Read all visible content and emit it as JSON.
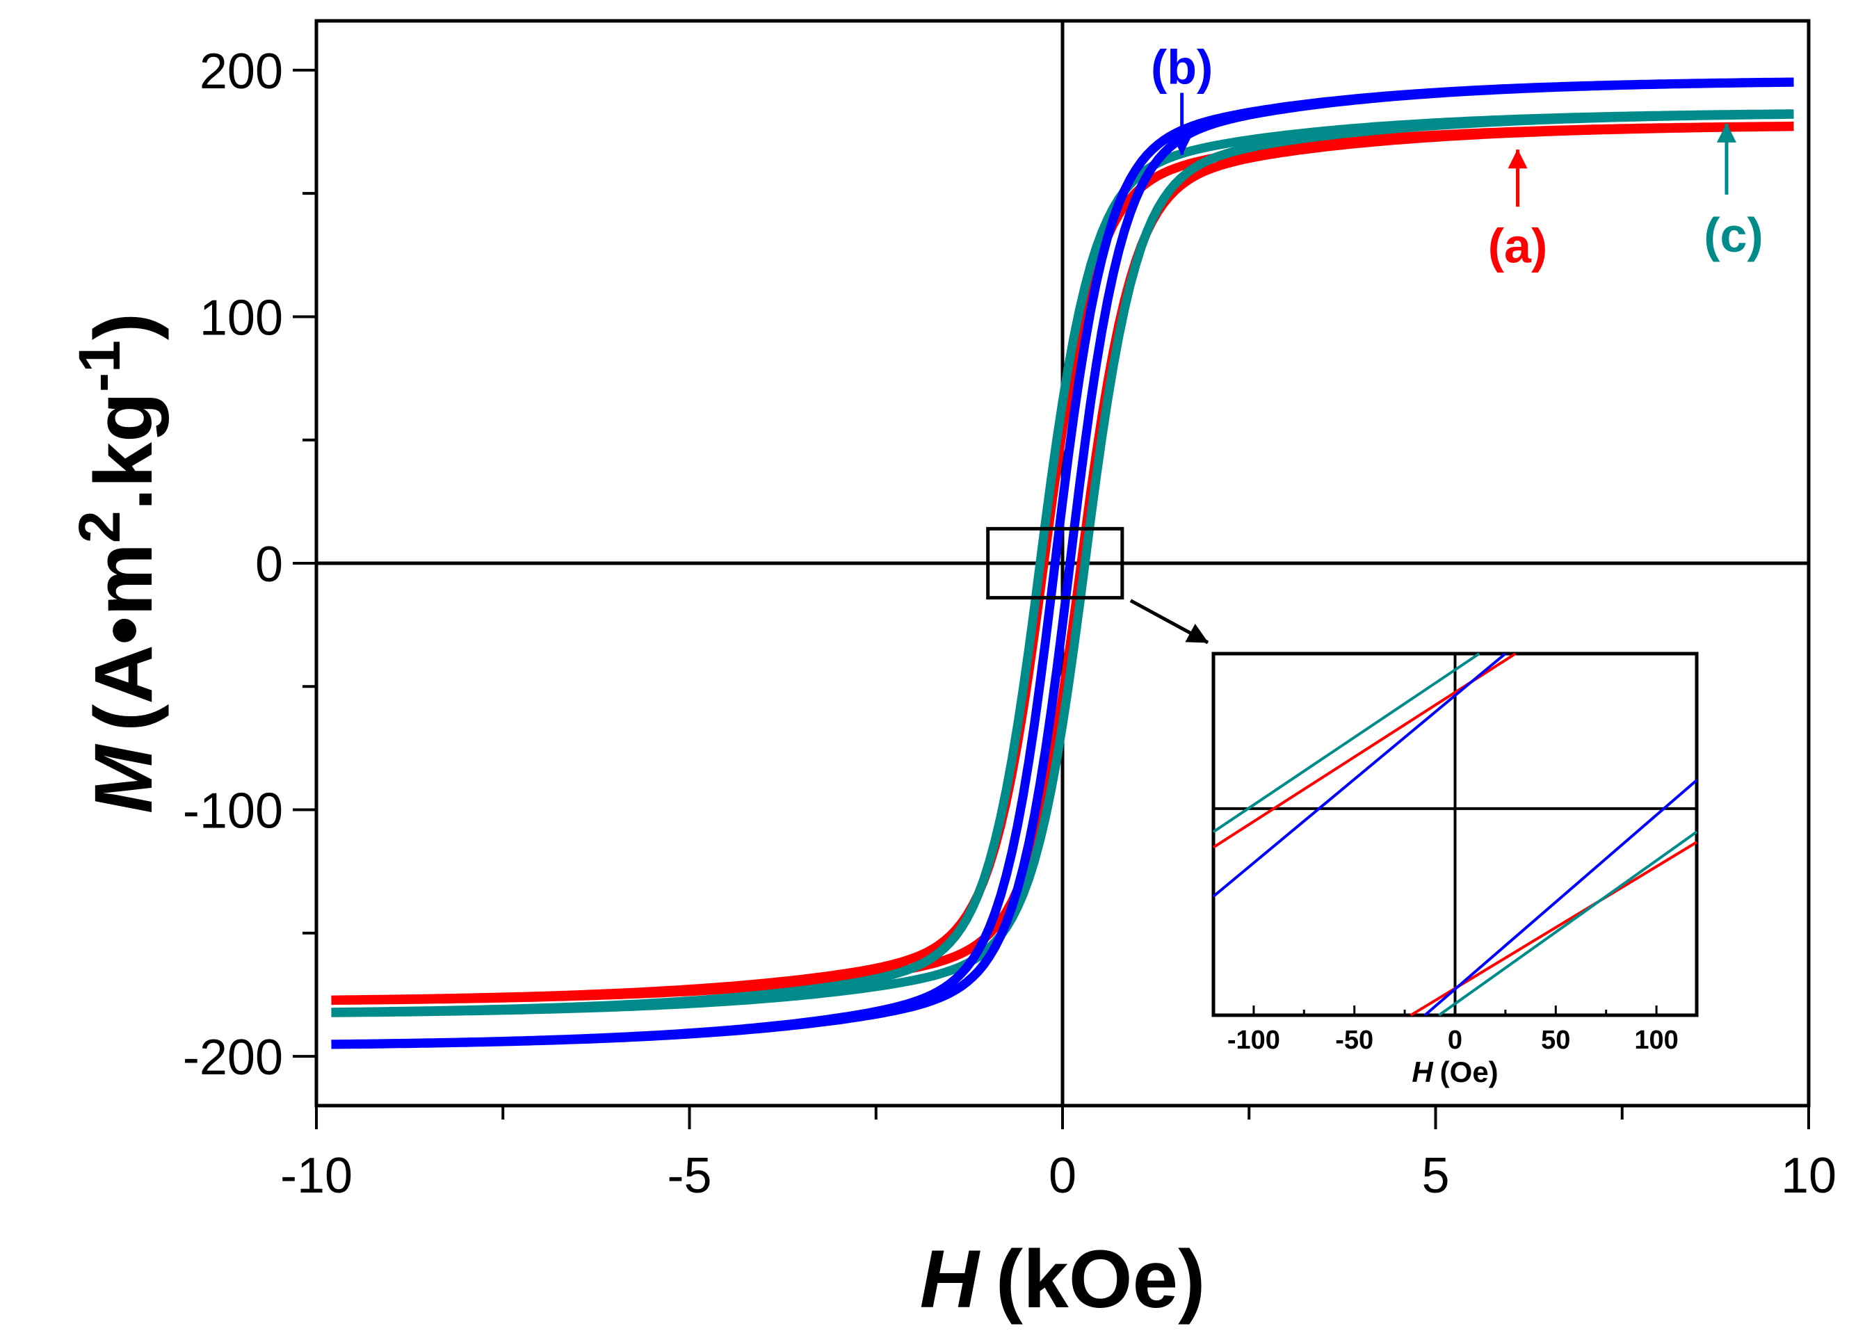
{
  "chart_data": [
    {
      "type": "line",
      "title": "",
      "xlabel": "H (kOe)",
      "ylabel": "M (A•m2.kg-1)",
      "xlabel_parts": {
        "symbol": "H",
        "unit": "(kOe)"
      },
      "ylabel_parts": {
        "symbol": "M",
        "unit_main": "(A•m",
        "sup1": "2",
        "unit_mid": ".kg",
        "sup2": "-1",
        "unit_end": ")"
      },
      "xlim": [
        -10,
        10
      ],
      "ylim": [
        -220,
        220
      ],
      "x_ticks": [
        -10,
        -5,
        0,
        5,
        10
      ],
      "x_tick_labels": [
        "-10",
        "-5",
        "0",
        "5",
        "10"
      ],
      "y_ticks": [
        -200,
        -100,
        0,
        100,
        200
      ],
      "y_tick_labels": [
        "-200",
        "-100",
        "0",
        "100",
        "200"
      ],
      "grid": false,
      "series": [
        {
          "name": "(a)",
          "color": "#ff0000",
          "saturation": 178,
          "coercivity_kOe": 0.025,
          "x_max": 9.8,
          "x": [
            -9.8,
            -8,
            -6,
            -4,
            -3,
            -2,
            -1.5,
            -1,
            -0.5,
            0,
            0.5,
            1,
            1.5,
            2,
            3,
            4,
            6,
            8,
            9.8
          ],
          "y": [
            -178,
            -176,
            -172,
            -166,
            -162,
            -154,
            -144,
            -122,
            -74,
            0,
            74,
            122,
            144,
            154,
            162,
            166,
            172,
            176,
            178
          ]
        },
        {
          "name": "(b)",
          "color": "#0000ff",
          "saturation": 196,
          "coercivity_kOe": 0.01,
          "x_max": 9.8,
          "x": [
            -9.8,
            -8,
            -6,
            -4,
            -3,
            -2,
            -1.5,
            -1,
            -0.5,
            0,
            0.5,
            1,
            1.5,
            2,
            3,
            4,
            6,
            8,
            9.8
          ],
          "y": [
            -196,
            -194,
            -190,
            -182,
            -176,
            -165,
            -153,
            -130,
            -80,
            0,
            80,
            130,
            153,
            165,
            176,
            182,
            190,
            194,
            196
          ]
        },
        {
          "name": "(c)",
          "color": "#008b8b",
          "saturation": 183,
          "coercivity_kOe": 0.03,
          "x_max": 9.8,
          "x": [
            -9.8,
            -8,
            -6,
            -4,
            -3,
            -2,
            -1.5,
            -1,
            -0.5,
            0,
            0.5,
            1,
            1.5,
            2,
            3,
            4,
            6,
            8,
            9.8
          ],
          "y": [
            -183,
            -181,
            -178,
            -172,
            -168,
            -160,
            -150,
            -130,
            -82,
            0,
            82,
            130,
            150,
            160,
            168,
            172,
            178,
            181,
            183
          ]
        }
      ],
      "annotations": [
        {
          "text": "(a)",
          "color": "#ff0000",
          "points_to": {
            "x": 6.1,
            "y": 170
          }
        },
        {
          "text": "(b)",
          "color": "#0000ff",
          "points_to": {
            "x": 1.6,
            "y": 164
          }
        },
        {
          "text": "(c)",
          "color": "#008b8b",
          "points_to": {
            "x": 8.9,
            "y": 180
          }
        }
      ],
      "zoom_box": {
        "x_range": [
          -1.0,
          0.8
        ],
        "y_range": [
          -14,
          14
        ]
      }
    },
    {
      "type": "line",
      "role": "inset",
      "xlabel": "H (Oe)",
      "xlabel_parts": {
        "symbol": "H",
        "unit": "(Oe)"
      },
      "xlim": [
        -120,
        120
      ],
      "ylim": [
        -4,
        3
      ],
      "x_ticks": [
        -100,
        -50,
        0,
        50,
        100
      ],
      "x_tick_labels": [
        "-100",
        "-50",
        "0",
        "50",
        "100"
      ],
      "series": [
        {
          "name": "(a)",
          "color": "#ff0000",
          "branches": [
            [
              [
                -120,
                -0.75
              ],
              [
                30,
                3.0
              ]
            ],
            [
              [
                -22,
                -4.0
              ],
              [
                120,
                -0.65
              ]
            ]
          ]
        },
        {
          "name": "(b)",
          "color": "#0000ff",
          "branches": [
            [
              [
                -120,
                -1.7
              ],
              [
                25,
                3.0
              ]
            ],
            [
              [
                -15,
                -4.0
              ],
              [
                120,
                0.55
              ]
            ]
          ]
        },
        {
          "name": "(c)",
          "color": "#008b8b",
          "branches": [
            [
              [
                -120,
                -0.45
              ],
              [
                12,
                3.0
              ]
            ],
            [
              [
                -8,
                -4.0
              ],
              [
                120,
                -0.45
              ]
            ]
          ]
        }
      ]
    }
  ]
}
